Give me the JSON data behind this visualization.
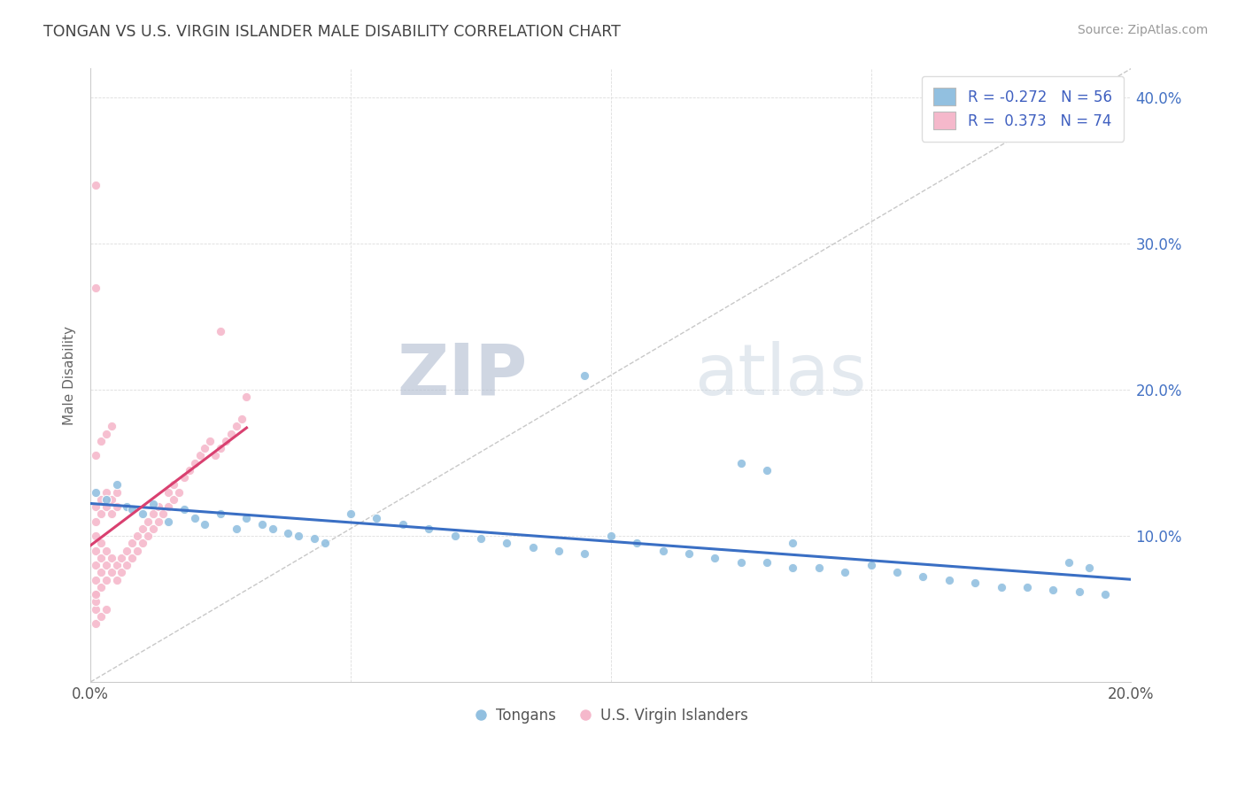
{
  "title": "TONGAN VS U.S. VIRGIN ISLANDER MALE DISABILITY CORRELATION CHART",
  "source": "Source: ZipAtlas.com",
  "ylabel": "Male Disability",
  "xlim": [
    0.0,
    0.2
  ],
  "ylim": [
    0.0,
    0.42
  ],
  "xtick_positions": [
    0.0,
    0.05,
    0.1,
    0.15,
    0.2
  ],
  "xtick_labels": [
    "0.0%",
    "",
    "",
    "",
    "20.0%"
  ],
  "ytick_positions": [
    0.1,
    0.2,
    0.3,
    0.4
  ],
  "ytick_labels_right": [
    "10.0%",
    "20.0%",
    "30.0%",
    "40.0%"
  ],
  "blue_color": "#92c0e0",
  "pink_color": "#f5b8cb",
  "blue_line_color": "#3a6fc4",
  "pink_line_color": "#d94070",
  "legend_labels_bottom": [
    "Tongans",
    "U.S. Virgin Islanders"
  ],
  "watermark_zip": "ZIP",
  "watermark_atlas": "atlas",
  "blue_R": -0.272,
  "blue_N": 56,
  "pink_R": 0.373,
  "pink_N": 74,
  "blue_scatter_x": [
    0.001,
    0.003,
    0.005,
    0.007,
    0.008,
    0.01,
    0.012,
    0.015,
    0.018,
    0.02,
    0.022,
    0.025,
    0.028,
    0.03,
    0.033,
    0.035,
    0.038,
    0.04,
    0.043,
    0.045,
    0.05,
    0.055,
    0.06,
    0.065,
    0.07,
    0.075,
    0.08,
    0.085,
    0.09,
    0.095,
    0.1,
    0.105,
    0.11,
    0.115,
    0.12,
    0.125,
    0.13,
    0.135,
    0.14,
    0.145,
    0.15,
    0.155,
    0.16,
    0.165,
    0.17,
    0.175,
    0.18,
    0.185,
    0.19,
    0.195,
    0.188,
    0.192,
    0.125,
    0.13,
    0.095,
    0.135
  ],
  "blue_scatter_y": [
    0.13,
    0.125,
    0.135,
    0.12,
    0.118,
    0.115,
    0.122,
    0.11,
    0.118,
    0.112,
    0.108,
    0.115,
    0.105,
    0.112,
    0.108,
    0.105,
    0.102,
    0.1,
    0.098,
    0.095,
    0.115,
    0.112,
    0.108,
    0.105,
    0.1,
    0.098,
    0.095,
    0.092,
    0.09,
    0.088,
    0.1,
    0.095,
    0.09,
    0.088,
    0.085,
    0.082,
    0.082,
    0.078,
    0.078,
    0.075,
    0.08,
    0.075,
    0.072,
    0.07,
    0.068,
    0.065,
    0.065,
    0.063,
    0.062,
    0.06,
    0.082,
    0.078,
    0.15,
    0.145,
    0.21,
    0.095
  ],
  "pink_scatter_x": [
    0.001,
    0.001,
    0.001,
    0.001,
    0.001,
    0.002,
    0.002,
    0.002,
    0.002,
    0.003,
    0.003,
    0.003,
    0.004,
    0.004,
    0.005,
    0.005,
    0.006,
    0.006,
    0.007,
    0.007,
    0.008,
    0.008,
    0.009,
    0.009,
    0.01,
    0.01,
    0.011,
    0.011,
    0.012,
    0.012,
    0.013,
    0.013,
    0.014,
    0.015,
    0.015,
    0.016,
    0.016,
    0.017,
    0.018,
    0.019,
    0.02,
    0.021,
    0.022,
    0.023,
    0.024,
    0.025,
    0.026,
    0.027,
    0.028,
    0.029,
    0.001,
    0.001,
    0.002,
    0.002,
    0.003,
    0.003,
    0.004,
    0.004,
    0.005,
    0.005,
    0.001,
    0.002,
    0.003,
    0.004,
    0.025,
    0.03,
    0.001,
    0.001,
    0.002,
    0.003,
    0.001,
    0.001,
    0.001,
    0.001
  ],
  "pink_scatter_y": [
    0.06,
    0.07,
    0.08,
    0.09,
    0.1,
    0.065,
    0.075,
    0.085,
    0.095,
    0.07,
    0.08,
    0.09,
    0.075,
    0.085,
    0.07,
    0.08,
    0.075,
    0.085,
    0.08,
    0.09,
    0.085,
    0.095,
    0.09,
    0.1,
    0.095,
    0.105,
    0.1,
    0.11,
    0.105,
    0.115,
    0.11,
    0.12,
    0.115,
    0.12,
    0.13,
    0.125,
    0.135,
    0.13,
    0.14,
    0.145,
    0.15,
    0.155,
    0.16,
    0.165,
    0.155,
    0.16,
    0.165,
    0.17,
    0.175,
    0.18,
    0.11,
    0.12,
    0.115,
    0.125,
    0.12,
    0.13,
    0.115,
    0.125,
    0.12,
    0.13,
    0.155,
    0.165,
    0.17,
    0.175,
    0.24,
    0.195,
    0.05,
    0.04,
    0.045,
    0.05,
    0.27,
    0.34,
    0.055,
    0.06
  ]
}
